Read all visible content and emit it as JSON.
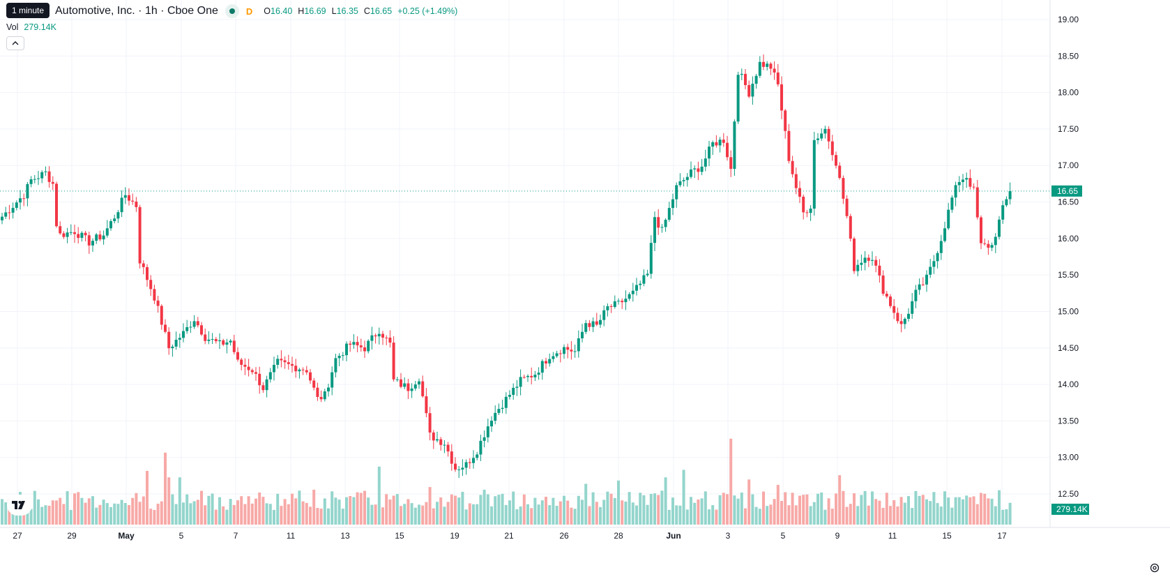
{
  "header": {
    "tooltip": "1 minute",
    "symbol_title": "Automotive, Inc. · 1h · Cboe One",
    "interval_badge": "D",
    "ohlc": {
      "o_label": "O",
      "o": "16.40",
      "h_label": "H",
      "h": "16.69",
      "l_label": "L",
      "l": "16.35",
      "c_label": "C",
      "c": "16.65",
      "change": "+0.25 (+1.49%)"
    },
    "vol_label": "Vol",
    "vol_value": "279.14K",
    "collapse_icon": "chevron-up-icon"
  },
  "colors": {
    "up": "#089981",
    "down": "#f23645",
    "up_volume": "#93d5cc",
    "down_volume": "#f7a9a7",
    "grid": "#f0f3fa",
    "price_line": "#089981"
  },
  "price_scale": {
    "ticks": [
      "19.00",
      "18.50",
      "18.00",
      "17.50",
      "17.00",
      "16.50",
      "16.00",
      "15.50",
      "15.00",
      "14.50",
      "14.00",
      "13.50",
      "13.00",
      "12.50"
    ],
    "last_price_label": "16.65",
    "last_volume_label": "279.14K"
  },
  "time_scale": {
    "labels": [
      "27",
      "29",
      "May",
      "5",
      "7",
      "11",
      "13",
      "15",
      "19",
      "21",
      "26",
      "28",
      "Jun",
      "3",
      "5",
      "9",
      "11",
      "15",
      "17"
    ],
    "bold_labels": [
      "May",
      "Jun"
    ]
  },
  "chart_data": {
    "type": "candlestick",
    "title": "Automotive, Inc. · 1h · Cboe One",
    "ylim": [
      12.3,
      19.1
    ],
    "last_price": 16.65,
    "last_volume": "279.14K",
    "grid": true,
    "x_labels": [
      "27",
      "29",
      "May",
      "5",
      "7",
      "11",
      "13",
      "15",
      "19",
      "21",
      "26",
      "28",
      "Jun",
      "3",
      "5",
      "9",
      "11",
      "15",
      "17"
    ],
    "anchors": [
      [
        0,
        16.3
      ],
      [
        4,
        16.5
      ],
      [
        6,
        16.6
      ],
      [
        8,
        16.8
      ],
      [
        10,
        16.85
      ],
      [
        12,
        16.9
      ],
      [
        14,
        16.75
      ],
      [
        15,
        16.2
      ],
      [
        16,
        16.05
      ],
      [
        20,
        16.1
      ],
      [
        24,
        15.95
      ],
      [
        28,
        16.05
      ],
      [
        31,
        16.3
      ],
      [
        34,
        16.6
      ],
      [
        37,
        16.45
      ],
      [
        38,
        15.7
      ],
      [
        42,
        15.2
      ],
      [
        46,
        14.5
      ],
      [
        50,
        14.7
      ],
      [
        53,
        14.9
      ],
      [
        56,
        14.65
      ],
      [
        60,
        14.55
      ],
      [
        63,
        14.6
      ],
      [
        65,
        14.3
      ],
      [
        69,
        14.2
      ],
      [
        72,
        13.95
      ],
      [
        76,
        14.3
      ],
      [
        80,
        14.25
      ],
      [
        84,
        14.2
      ],
      [
        87,
        13.8
      ],
      [
        89,
        13.85
      ],
      [
        92,
        14.35
      ],
      [
        96,
        14.55
      ],
      [
        100,
        14.5
      ],
      [
        104,
        14.75
      ],
      [
        107,
        14.55
      ],
      [
        108,
        14.05
      ],
      [
        112,
        13.95
      ],
      [
        115,
        14.1
      ],
      [
        118,
        13.3
      ],
      [
        122,
        13.2
      ],
      [
        125,
        12.85
      ],
      [
        128,
        12.9
      ],
      [
        131,
        13.1
      ],
      [
        135,
        13.55
      ],
      [
        139,
        13.8
      ],
      [
        143,
        14.05
      ],
      [
        147,
        14.15
      ],
      [
        151,
        14.4
      ],
      [
        155,
        14.5
      ],
      [
        158,
        14.45
      ],
      [
        161,
        14.85
      ],
      [
        164,
        14.8
      ],
      [
        167,
        15.05
      ],
      [
        170,
        15.1
      ],
      [
        174,
        15.25
      ],
      [
        178,
        15.5
      ],
      [
        180,
        16.3
      ],
      [
        182,
        16.1
      ],
      [
        186,
        16.7
      ],
      [
        190,
        16.9
      ],
      [
        193,
        17.0
      ],
      [
        196,
        17.3
      ],
      [
        199,
        17.35
      ],
      [
        201,
        16.95
      ],
      [
        203,
        18.3
      ],
      [
        206,
        18.0
      ],
      [
        209,
        18.4
      ],
      [
        212,
        18.35
      ],
      [
        214,
        18.1
      ],
      [
        217,
        17.1
      ],
      [
        219,
        16.7
      ],
      [
        221,
        16.35
      ],
      [
        223,
        16.45
      ],
      [
        224,
        17.35
      ],
      [
        227,
        17.5
      ],
      [
        230,
        17.05
      ],
      [
        233,
        16.3
      ],
      [
        235,
        15.6
      ],
      [
        238,
        15.75
      ],
      [
        240,
        15.75
      ],
      [
        243,
        15.3
      ],
      [
        246,
        15.0
      ],
      [
        248,
        14.8
      ],
      [
        250,
        15.0
      ],
      [
        252,
        15.25
      ],
      [
        255,
        15.45
      ],
      [
        257,
        15.7
      ],
      [
        259,
        16.0
      ],
      [
        262,
        16.55
      ],
      [
        264,
        16.8
      ],
      [
        266,
        16.85
      ],
      [
        268,
        16.65
      ],
      [
        270,
        15.9
      ],
      [
        273,
        15.9
      ],
      [
        276,
        16.4
      ],
      [
        278,
        16.65
      ]
    ],
    "volume_spikes": {
      "40": 1.0,
      "45": 1.34,
      "46": 0.88,
      "49": 0.88,
      "86": 0.65,
      "104": 1.08,
      "118": 0.7,
      "133": 0.65,
      "161": 0.76,
      "170": 0.82,
      "183": 0.88,
      "188": 1.02,
      "201": 1.6,
      "206": 0.84,
      "214": 0.74,
      "231": 0.92,
      "260": 0.62,
      "275": 0.64
    }
  }
}
